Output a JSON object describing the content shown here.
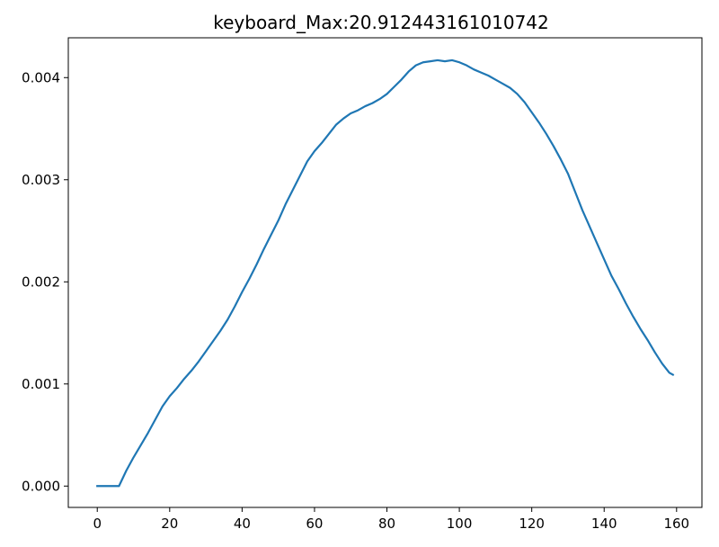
{
  "chart_data": {
    "type": "line",
    "title": "keyboard_Max:20.912443161010742",
    "xlabel": "",
    "ylabel": "",
    "xlim": [
      -8,
      167
    ],
    "ylim": [
      -0.000209,
      0.00439
    ],
    "grid": false,
    "x_ticks": [
      0,
      20,
      40,
      60,
      80,
      100,
      120,
      140,
      160
    ],
    "x_tick_labels": [
      "0",
      "20",
      "40",
      "60",
      "80",
      "100",
      "120",
      "140",
      "160"
    ],
    "y_ticks": [
      0.0,
      0.001,
      0.002,
      0.003,
      0.004
    ],
    "y_tick_labels": [
      "0.000",
      "0.001",
      "0.002",
      "0.003",
      "0.004"
    ],
    "series": [
      {
        "color": "#1f77b4",
        "x": [
          0,
          2,
          4,
          6,
          8,
          10,
          12,
          14,
          16,
          18,
          20,
          22,
          24,
          26,
          28,
          30,
          32,
          34,
          36,
          38,
          40,
          42,
          44,
          46,
          48,
          50,
          52,
          54,
          56,
          58,
          60,
          62,
          64,
          66,
          68,
          70,
          72,
          74,
          76,
          78,
          80,
          82,
          84,
          86,
          88,
          90,
          92,
          94,
          96,
          98,
          100,
          102,
          104,
          106,
          108,
          110,
          112,
          114,
          116,
          118,
          120,
          122,
          124,
          126,
          128,
          130,
          132,
          134,
          136,
          138,
          140,
          142,
          144,
          146,
          148,
          150,
          152,
          154,
          156,
          158,
          159
        ],
        "y": [
          0.0,
          0.0,
          0.0,
          0.0,
          0.00015,
          0.00028,
          0.0004,
          0.00052,
          0.00065,
          0.00078,
          0.00088,
          0.00096,
          0.00105,
          0.00113,
          0.00122,
          0.00132,
          0.00142,
          0.00152,
          0.00163,
          0.00176,
          0.0019,
          0.00203,
          0.00217,
          0.00232,
          0.00246,
          0.0026,
          0.00276,
          0.0029,
          0.00304,
          0.00318,
          0.00328,
          0.00336,
          0.00345,
          0.00354,
          0.0036,
          0.00365,
          0.00368,
          0.00372,
          0.00375,
          0.00379,
          0.00384,
          0.00391,
          0.00398,
          0.00406,
          0.00412,
          0.00415,
          0.00416,
          0.00417,
          0.00416,
          0.00417,
          0.00415,
          0.00412,
          0.00408,
          0.00405,
          0.00402,
          0.00398,
          0.00394,
          0.0039,
          0.00384,
          0.00376,
          0.00366,
          0.00356,
          0.00345,
          0.00333,
          0.0032,
          0.00306,
          0.00288,
          0.0027,
          0.00254,
          0.00238,
          0.00222,
          0.00206,
          0.00193,
          0.00179,
          0.00166,
          0.00154,
          0.00143,
          0.00131,
          0.0012,
          0.00111,
          0.00109
        ]
      }
    ]
  }
}
